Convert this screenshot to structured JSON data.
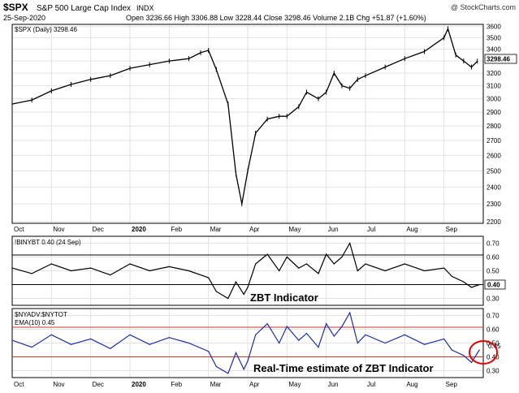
{
  "header": {
    "title": "$SPX",
    "subtitle": "S&P 500 Large Cap Index",
    "exchange": "INDX",
    "date": "25-Sep-2020",
    "stats": "Open 3236.66  High 3306.88  Low 3228.44  Close 3298.46  Volume 2.1B  Chg +51.87 (+1.60%)",
    "brand": "@ StockCharts.com"
  },
  "chart_data": [
    {
      "type": "line",
      "panel": "price",
      "legend": "$SPX (Daily) 3298.46",
      "last_value_label": "3298.46",
      "ylim": [
        2190,
        3620
      ],
      "y_ticks": [
        2200,
        2300,
        2400,
        2500,
        2600,
        2700,
        2800,
        2900,
        3000,
        3100,
        3200,
        3300,
        3400,
        3500,
        3600
      ],
      "x_labels": [
        "Oct",
        "Nov",
        "Dec",
        "2020",
        "Feb",
        "Mar",
        "Apr",
        "May",
        "Jun",
        "Jul",
        "Aug",
        "Sep"
      ],
      "x_label_month_index": [
        0,
        1,
        2,
        3,
        4,
        5,
        6,
        7,
        8,
        9,
        10,
        11
      ],
      "x_month": [
        0,
        0.5,
        1,
        1.5,
        2,
        2.5,
        3,
        3.5,
        4,
        4.5,
        4.8,
        5,
        5.2,
        5.5,
        5.7,
        5.85,
        6,
        6.2,
        6.5,
        6.8,
        7,
        7.3,
        7.5,
        7.8,
        8,
        8.2,
        8.4,
        8.6,
        8.8,
        9,
        9.5,
        10,
        10.5,
        11,
        11.1,
        11.3,
        11.5,
        11.7,
        11.85
      ],
      "values": [
        2960,
        2990,
        3060,
        3110,
        3150,
        3180,
        3240,
        3270,
        3300,
        3320,
        3370,
        3390,
        3230,
        2960,
        2480,
        2300,
        2500,
        2750,
        2850,
        2870,
        2870,
        2940,
        3050,
        3000,
        3050,
        3200,
        3100,
        3080,
        3150,
        3180,
        3250,
        3320,
        3380,
        3500,
        3580,
        3350,
        3300,
        3250,
        3298.46
      ],
      "grid": true,
      "scale": "log"
    },
    {
      "type": "line",
      "panel": "indicator-1",
      "legend": "!BINYBT 0.40 (24 Sep)",
      "annotation": "ZBT Indicator",
      "last_value_label": "0.40",
      "ylim": [
        0.25,
        0.75
      ],
      "y_ticks": [
        0.3,
        0.4,
        0.5,
        0.6,
        0.7
      ],
      "reference_lines": [
        0.4,
        0.615
      ],
      "x_month": [
        0,
        0.5,
        1,
        1.5,
        2,
        2.5,
        3,
        3.5,
        4,
        4.5,
        5,
        5.2,
        5.5,
        5.7,
        5.9,
        6,
        6.2,
        6.5,
        6.8,
        7,
        7.3,
        7.5,
        7.8,
        8,
        8.2,
        8.4,
        8.6,
        8.8,
        9,
        9.5,
        10,
        10.5,
        11,
        11.2,
        11.5,
        11.7,
        11.9
      ],
      "values": [
        0.52,
        0.48,
        0.55,
        0.5,
        0.52,
        0.47,
        0.55,
        0.5,
        0.53,
        0.5,
        0.45,
        0.35,
        0.3,
        0.42,
        0.33,
        0.38,
        0.55,
        0.62,
        0.5,
        0.6,
        0.52,
        0.55,
        0.48,
        0.62,
        0.55,
        0.6,
        0.7,
        0.5,
        0.55,
        0.5,
        0.55,
        0.5,
        0.52,
        0.46,
        0.42,
        0.38,
        0.4
      ],
      "grid": true
    },
    {
      "type": "line",
      "panel": "indicator-2",
      "legend": "$NYADV:$NYTOT",
      "legend_2": "EMA(10) 0.45",
      "annotation": "Real-Time estimate of ZBT Indicator",
      "last_value_label": "0.45",
      "ylim": [
        0.25,
        0.75
      ],
      "y_ticks": [
        0.3,
        0.4,
        0.5,
        0.6,
        0.7
      ],
      "reference_lines": [
        0.4,
        0.615
      ],
      "x_month": [
        0,
        0.5,
        1,
        1.5,
        2,
        2.5,
        3,
        3.5,
        4,
        4.5,
        5,
        5.2,
        5.5,
        5.7,
        5.9,
        6,
        6.2,
        6.5,
        6.8,
        7,
        7.3,
        7.5,
        7.8,
        8,
        8.2,
        8.4,
        8.6,
        8.8,
        9,
        9.5,
        10,
        10.5,
        11,
        11.2,
        11.5,
        11.7,
        11.9
      ],
      "values": [
        0.52,
        0.47,
        0.56,
        0.49,
        0.53,
        0.46,
        0.56,
        0.49,
        0.54,
        0.5,
        0.44,
        0.33,
        0.28,
        0.43,
        0.31,
        0.37,
        0.56,
        0.64,
        0.5,
        0.62,
        0.52,
        0.57,
        0.47,
        0.64,
        0.55,
        0.62,
        0.72,
        0.5,
        0.56,
        0.5,
        0.56,
        0.49,
        0.53,
        0.45,
        0.41,
        0.36,
        0.45
      ],
      "color": "#1f2fa6",
      "reference_color": "#c0392b",
      "highlight_circle": "red",
      "grid": true
    }
  ]
}
